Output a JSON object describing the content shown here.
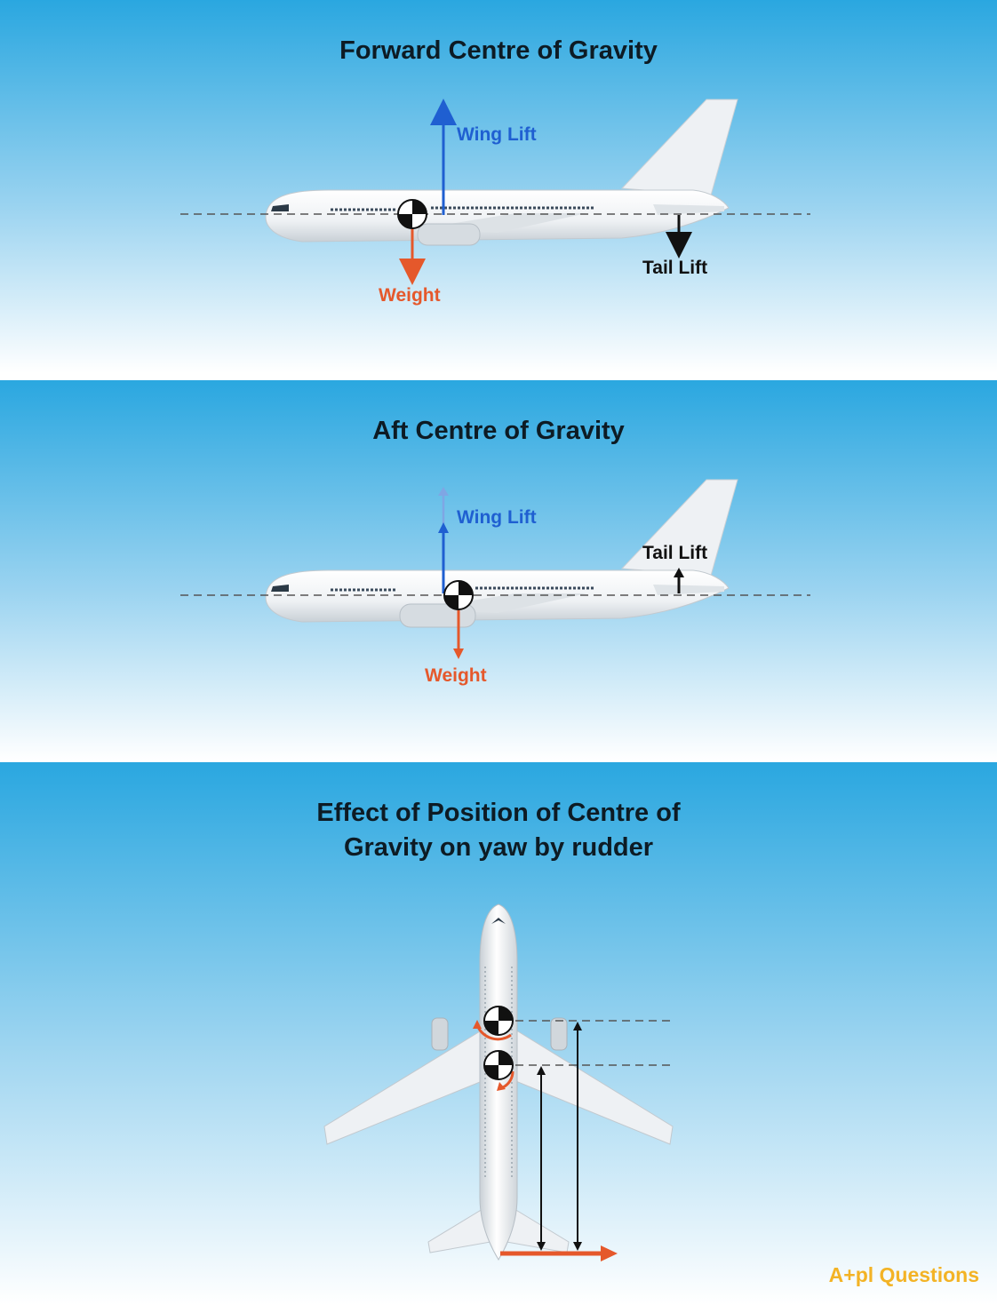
{
  "panels": [
    {
      "title": "Forward Centre of Gravity",
      "wing_lift": "Wing Lift",
      "weight": "Weight",
      "tail_lift": "Tail Lift"
    },
    {
      "title": "Aft Centre of Gravity",
      "wing_lift": "Wing Lift",
      "weight": "Weight",
      "tail_lift": "Tail Lift"
    },
    {
      "title_line1": "Effect of Position of Centre of",
      "title_line2": "Gravity on yaw by rudder"
    }
  ],
  "logo": {
    "prefix": "A",
    "mark": "+",
    "suffix": "pl Questions"
  },
  "colors": {
    "sky_top": "#2aa7e0",
    "sky_bottom": "#ffffff",
    "lift": "#1f5fd1",
    "weight": "#e5582b",
    "tail": "#111111",
    "logo": "#f3b325"
  },
  "icons": [
    "airplane-side-icon",
    "airplane-top-icon",
    "cg-symbol-icon"
  ]
}
